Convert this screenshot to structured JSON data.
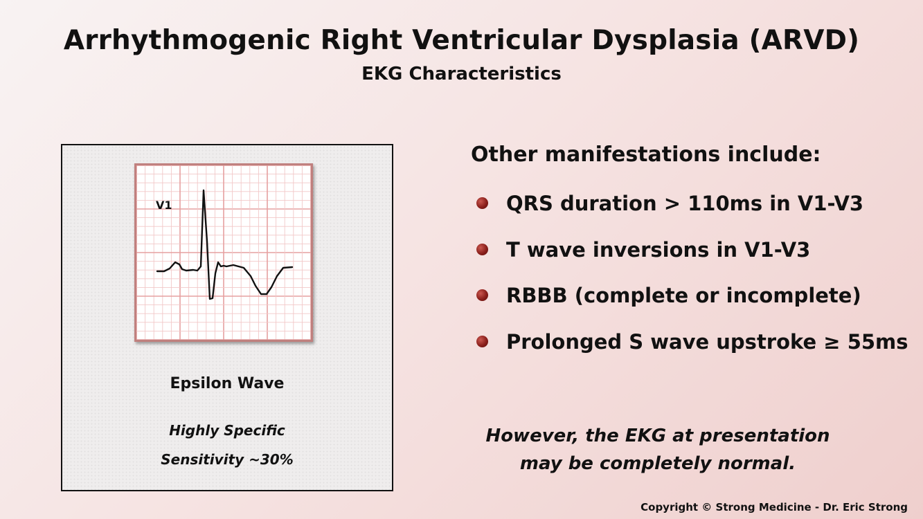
{
  "slide": {
    "title": "Arrhythmogenic Right Ventricular Dysplasia (ARVD)",
    "subtitle": "EKG Characteristics"
  },
  "panel": {
    "lead_label": "V1",
    "caption": "Epsilon Wave",
    "specificity": "Highly Specific",
    "sensitivity": "Sensitivity  ~30%"
  },
  "manifestations": {
    "heading": "Other manifestations include:",
    "items": [
      "QRS duration > 110ms in V1-V3",
      "T wave inversions in V1-V3",
      "RBBB (complete or incomplete)",
      "Prolonged S wave upstroke ≥ 55ms"
    ]
  },
  "note": {
    "line1": "However, the EKG at presentation",
    "line2": "may be completely normal."
  },
  "copyright": "Copyright © Strong Medicine - Dr. Eric Strong",
  "colors": {
    "grid_major": "#e6a0a0",
    "grid_minor": "#f2c8c8",
    "trace": "#111111",
    "bullet": "#8a1f1b"
  }
}
